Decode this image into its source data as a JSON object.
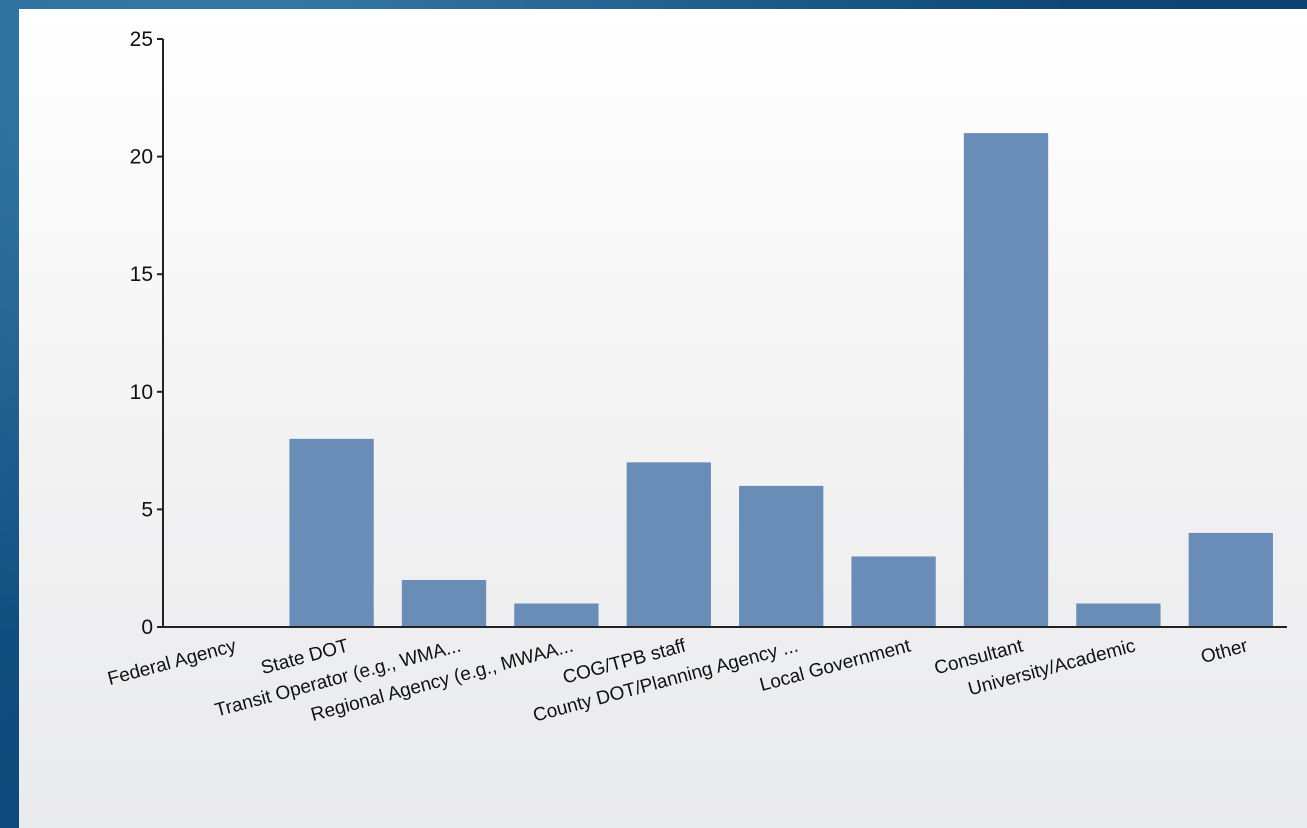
{
  "chart_data": {
    "type": "bar",
    "categories": [
      "Federal Agency",
      "State DOT",
      "Transit Operator (e.g., WMA...",
      "Regional Agency (e.g., MWAA...",
      "COG/TPB staff",
      "County DOT/Planning Agency ...",
      "Local Government",
      "Consultant",
      "University/Academic",
      "Other"
    ],
    "values": [
      0,
      8,
      2,
      1,
      7,
      6,
      3,
      21,
      1,
      4
    ],
    "ylim": [
      0,
      25
    ],
    "yticks": [
      0,
      5,
      10,
      15,
      20,
      25
    ],
    "title": "",
    "xlabel": "",
    "ylabel": "",
    "grid": false,
    "colors": {
      "bar": "#6a8db8",
      "axis": "#222222",
      "panel": "#f4f4f5",
      "background": "#0f4c7d"
    }
  }
}
